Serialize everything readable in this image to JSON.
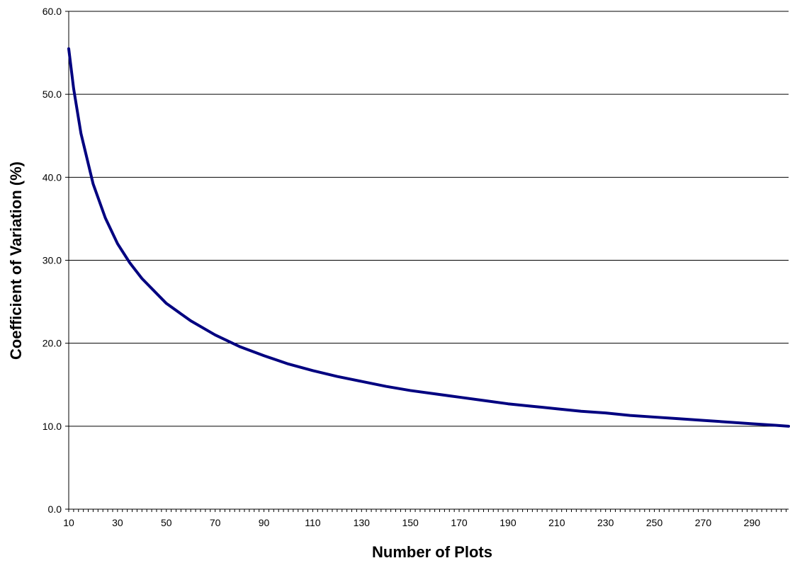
{
  "chart_data": {
    "type": "line",
    "title": "",
    "xlabel": "Number of Plots",
    "ylabel": "Coefficient of Variation (%)",
    "xlim": [
      10,
      305
    ],
    "ylim": [
      0,
      60
    ],
    "x_tick_labels": [
      "10",
      "30",
      "50",
      "70",
      "90",
      "110",
      "130",
      "150",
      "170",
      "190",
      "210",
      "230",
      "250",
      "270",
      "290"
    ],
    "y_tick_labels": [
      "0.0",
      "10.0",
      "20.0",
      "30.0",
      "40.0",
      "50.0",
      "60.0"
    ],
    "grid": "horizontal",
    "legend": "none",
    "line_color": "#000080",
    "series": [
      {
        "x": [
          10,
          12,
          15,
          20,
          25,
          30,
          35,
          40,
          50,
          60,
          70,
          80,
          90,
          100,
          110,
          120,
          130,
          140,
          150,
          160,
          170,
          180,
          190,
          200,
          210,
          220,
          230,
          240,
          250,
          260,
          270,
          280,
          290,
          300,
          305
        ],
        "values": [
          55.5,
          50.7,
          45.3,
          39.2,
          35.1,
          32.0,
          29.7,
          27.8,
          24.8,
          22.7,
          21.0,
          19.6,
          18.5,
          17.5,
          16.7,
          16.0,
          15.4,
          14.8,
          14.3,
          13.9,
          13.5,
          13.1,
          12.7,
          12.4,
          12.1,
          11.8,
          11.6,
          11.3,
          11.1,
          10.9,
          10.7,
          10.5,
          10.3,
          10.1,
          10.0
        ]
      }
    ]
  }
}
